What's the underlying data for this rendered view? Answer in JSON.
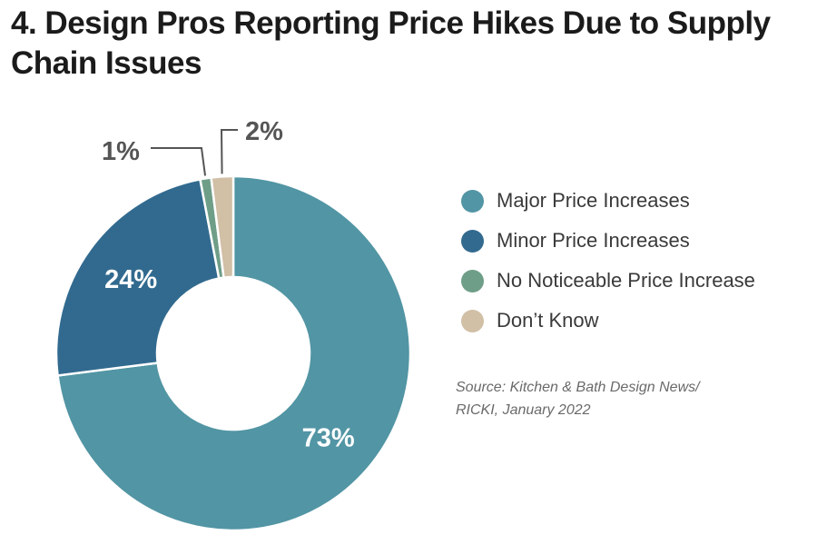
{
  "title": "4. Design Pros Reporting Price Hikes Due to Supply Chain Issues",
  "source": {
    "line1": "Source: Kitchen & Bath Design News/",
    "line2": "RICKI, January 2022"
  },
  "colors": {
    "major": "#5295a4",
    "minor": "#326a8f",
    "no_noticeable": "#6f9e88",
    "dont_know": "#d1bfa6"
  },
  "chart_data": {
    "type": "pie",
    "style": "donut",
    "unit": "%",
    "title": "4. Design Pros Reporting Price Hikes Due to Supply Chain Issues",
    "legend_position": "right",
    "slices": [
      {
        "name": "Major Price Increases",
        "value": 73,
        "label": "73%",
        "color": "#5295a4"
      },
      {
        "name": "Minor Price Increases",
        "value": 24,
        "label": "24%",
        "color": "#326a8f"
      },
      {
        "name": "No Noticeable Price Increase",
        "value": 1,
        "label": "1%",
        "color": "#6f9e88"
      },
      {
        "name": "Don’t Know",
        "value": 2,
        "label": "2%",
        "color": "#d1bfa6"
      }
    ]
  }
}
